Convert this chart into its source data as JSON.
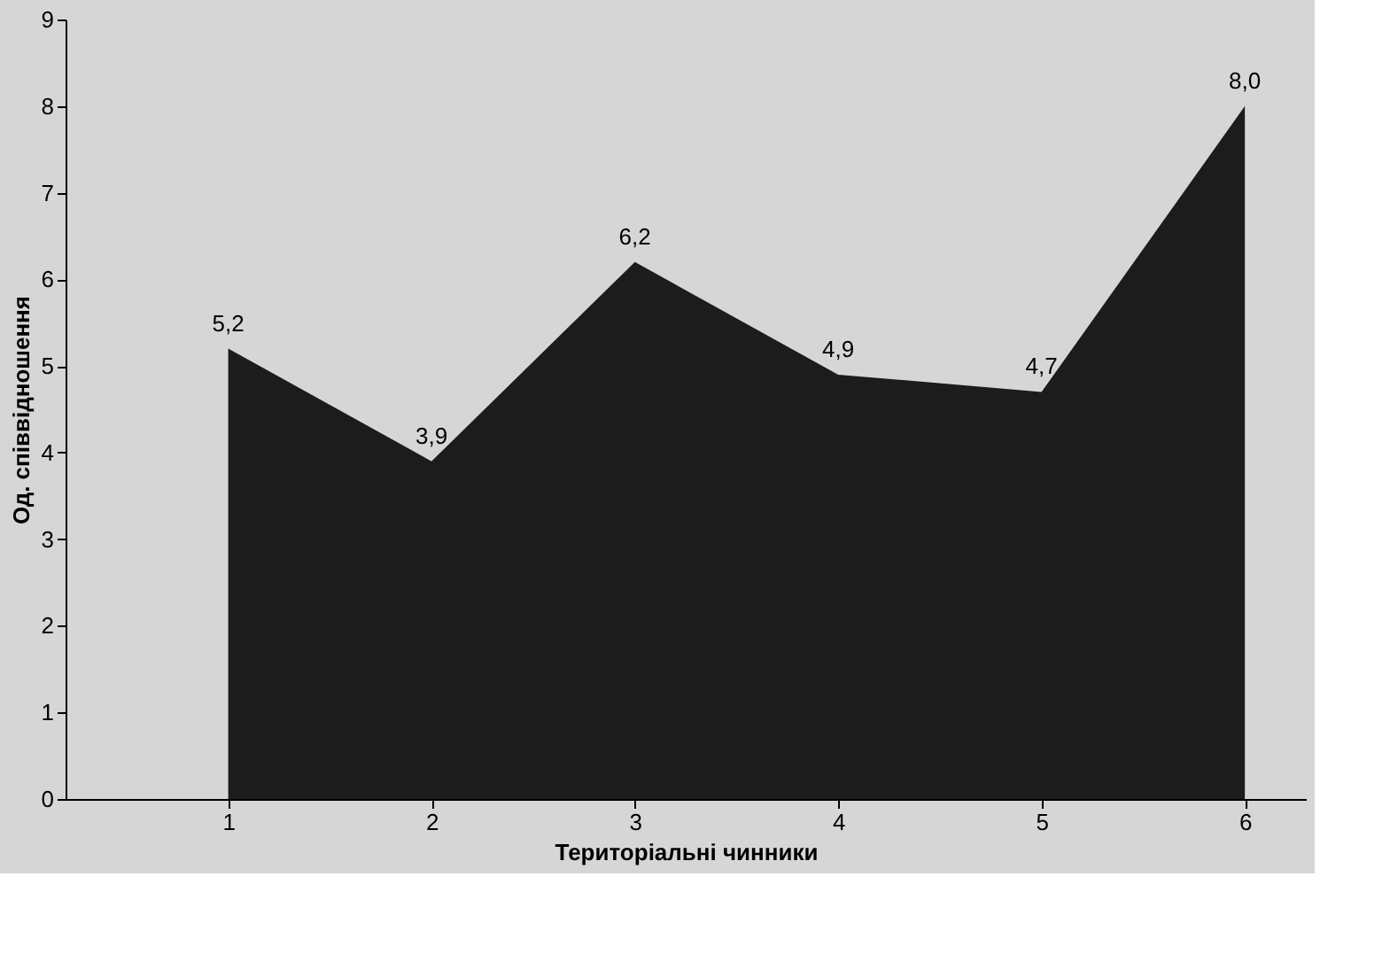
{
  "chart_data": {
    "type": "area",
    "xlabel": "Територіальні чинники",
    "ylabel": "Од. співвідношення",
    "categories": [
      "1",
      "2",
      "3",
      "4",
      "5",
      "6"
    ],
    "values": [
      5.2,
      3.9,
      6.2,
      4.9,
      4.7,
      8.0
    ],
    "value_labels": [
      "5,2",
      "3,9",
      "6,2",
      "4,9",
      "4,7",
      "8,0"
    ],
    "color": "#1c1c1c",
    "ylim": [
      0,
      9
    ],
    "yticks": [
      0,
      1,
      2,
      3,
      4,
      5,
      6,
      7,
      8,
      9
    ],
    "grid": false
  }
}
